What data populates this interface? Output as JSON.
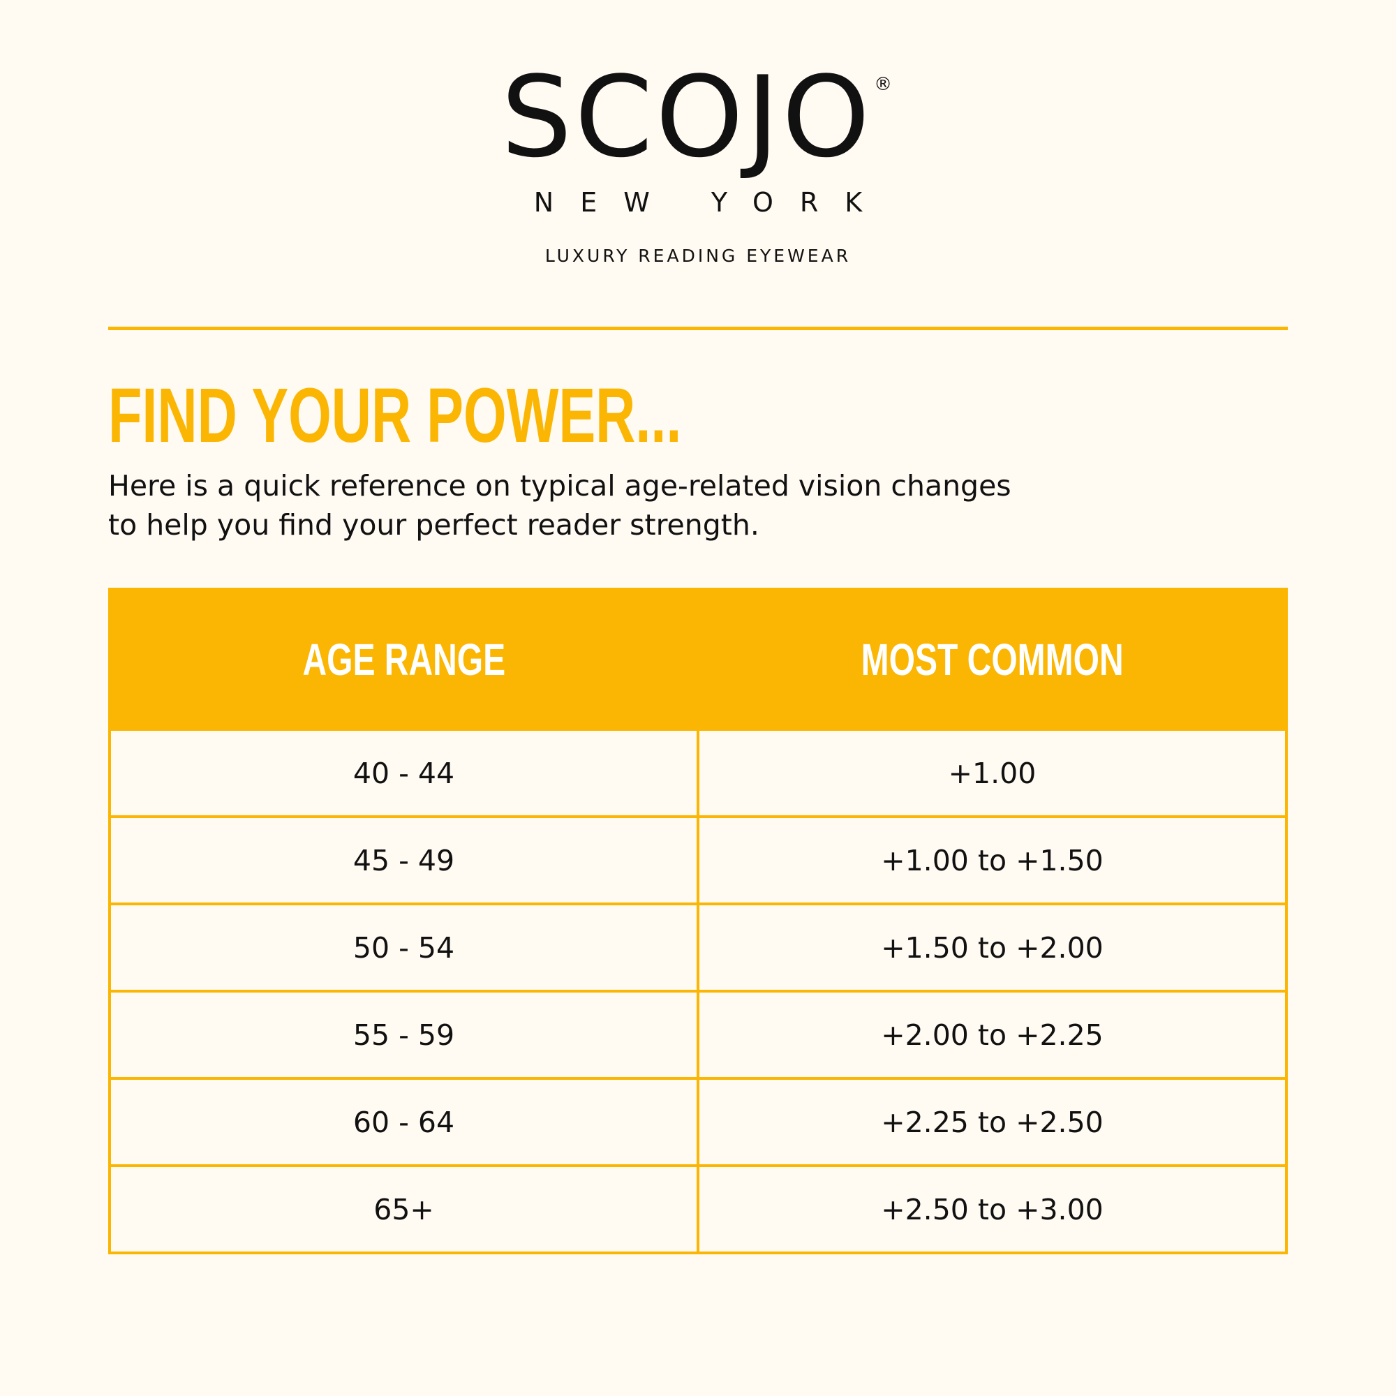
{
  "brand": {
    "name": "SCOJO",
    "registered": "®",
    "city": "NEW YORK",
    "tagline": "LUXURY READING EYEWEAR"
  },
  "colors": {
    "accent": "#fbb604",
    "background": "#fffaf2",
    "text": "#111111"
  },
  "heading": "FIND YOUR POWER...",
  "intro": "Here is a quick reference on typical age-related vision changes to help you find your perfect reader strength.",
  "table": {
    "headers": [
      "AGE RANGE",
      "MOST COMMON"
    ],
    "rows": [
      [
        "40 - 44",
        "+1.00"
      ],
      [
        "45 - 49",
        "+1.00 to +1.50"
      ],
      [
        "50 - 54",
        "+1.50 to +2.00"
      ],
      [
        "55 - 59",
        "+2.00 to +2.25"
      ],
      [
        "60 - 64",
        "+2.25 to +2.50"
      ],
      [
        "65+",
        "+2.50 to +3.00"
      ]
    ]
  }
}
